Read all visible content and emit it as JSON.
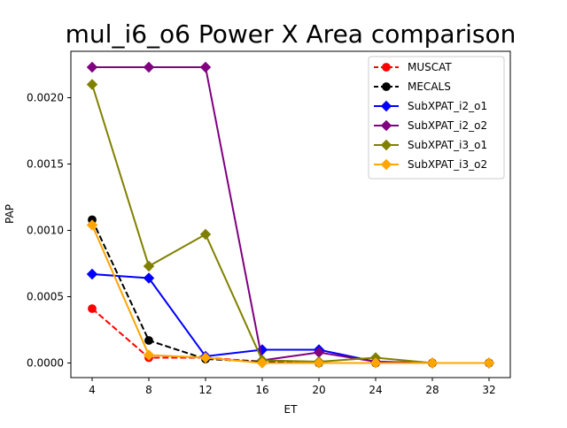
{
  "chart_data": {
    "type": "line",
    "title": "mul_i6_o6 Power X Area comparison",
    "xlabel": "ET",
    "ylabel": "PAP",
    "xlim": [
      2.5,
      33.5
    ],
    "ylim": [
      -0.00011,
      0.00235
    ],
    "xticks": [
      4,
      8,
      12,
      16,
      20,
      24,
      28,
      32
    ],
    "yticks": [
      0.0,
      0.0005,
      0.001,
      0.0015,
      0.002
    ],
    "ytick_labels": [
      "0.0000",
      "0.0005",
      "0.0010",
      "0.0015",
      "0.0020"
    ],
    "legend_position": "top-right",
    "grid": false,
    "series": [
      {
        "name": "MUSCAT",
        "color": "#ff0000",
        "marker": "circle",
        "dashed": true,
        "points": [
          [
            4,
            0.00041
          ],
          [
            8,
            4e-05
          ],
          [
            12,
            4e-05
          ],
          [
            16,
            1e-05
          ],
          [
            20,
            0.0
          ],
          [
            24,
            0.0
          ],
          [
            28,
            0.0
          ],
          [
            32,
            0.0
          ]
        ]
      },
      {
        "name": "MECALS",
        "color": "#000000",
        "marker": "circle",
        "dashed": true,
        "points": [
          [
            4,
            0.00108
          ],
          [
            8,
            0.00017
          ],
          [
            12,
            3e-05
          ],
          [
            16,
            1e-05
          ],
          [
            20,
            0.0
          ],
          [
            24,
            0.0
          ],
          [
            28,
            0.0
          ],
          [
            32,
            0.0
          ]
        ]
      },
      {
        "name": "SubXPAT_i2_o1",
        "color": "#0000ff",
        "marker": "diamond",
        "dashed": false,
        "points": [
          [
            4,
            0.00067
          ],
          [
            8,
            0.00064
          ],
          [
            12,
            5e-05
          ],
          [
            16,
            0.0001
          ],
          [
            20,
            0.0001
          ],
          [
            24,
            1e-05
          ],
          [
            28,
            0.0
          ],
          [
            32,
            0.0
          ]
        ]
      },
      {
        "name": "SubXPAT_i2_o2",
        "color": "#800080",
        "marker": "diamond",
        "dashed": false,
        "points": [
          [
            4,
            0.00223
          ],
          [
            8,
            0.00223
          ],
          [
            12,
            0.00223
          ],
          [
            16,
            2e-05
          ],
          [
            20,
            8e-05
          ],
          [
            24,
            1e-05
          ],
          [
            28,
            0.0
          ],
          [
            32,
            0.0
          ]
        ]
      },
      {
        "name": "SubXPAT_i3_o1",
        "color": "#808000",
        "marker": "diamond",
        "dashed": false,
        "points": [
          [
            4,
            0.0021
          ],
          [
            8,
            0.00073
          ],
          [
            12,
            0.00097
          ],
          [
            16,
            2e-05
          ],
          [
            20,
            1e-05
          ],
          [
            24,
            4e-05
          ],
          [
            28,
            0.0
          ],
          [
            32,
            0.0
          ]
        ]
      },
      {
        "name": "SubXPAT_i3_o2",
        "color": "#ffa500",
        "marker": "diamond",
        "dashed": false,
        "points": [
          [
            4,
            0.00104
          ],
          [
            8,
            6e-05
          ],
          [
            12,
            4e-05
          ],
          [
            16,
            0.0
          ],
          [
            20,
            0.0
          ],
          [
            24,
            0.0
          ],
          [
            28,
            0.0
          ],
          [
            32,
            0.0
          ]
        ]
      }
    ]
  }
}
